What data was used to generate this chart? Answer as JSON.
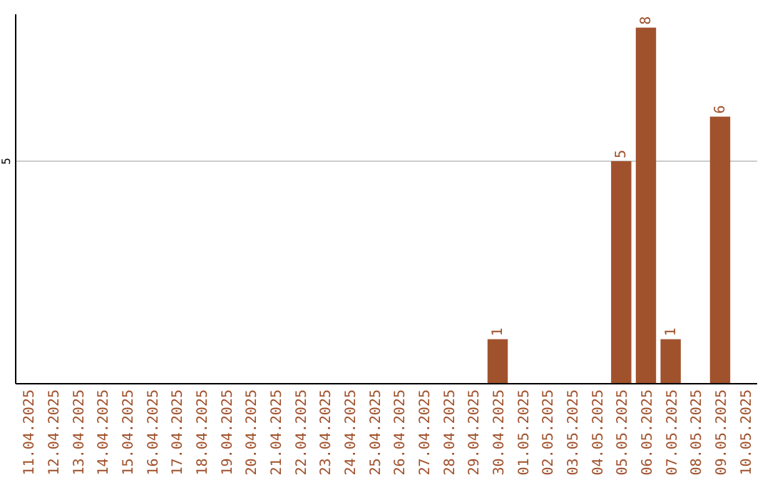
{
  "chart_data": {
    "type": "bar",
    "categories": [
      "11.04.2025",
      "12.04.2025",
      "13.04.2025",
      "14.04.2025",
      "15.04.2025",
      "16.04.2025",
      "17.04.2025",
      "18.04.2025",
      "19.04.2025",
      "20.04.2025",
      "21.04.2025",
      "22.04.2025",
      "23.04.2025",
      "24.04.2025",
      "25.04.2025",
      "26.04.2025",
      "27.04.2025",
      "28.04.2025",
      "29.04.2025",
      "30.04.2025",
      "01.05.2025",
      "02.05.2025",
      "03.05.2025",
      "04.05.2025",
      "05.05.2025",
      "06.05.2025",
      "07.05.2025",
      "08.05.2025",
      "09.05.2025",
      "10.05.2025"
    ],
    "values": [
      null,
      null,
      null,
      null,
      null,
      null,
      null,
      null,
      null,
      null,
      null,
      null,
      null,
      null,
      null,
      null,
      null,
      null,
      null,
      1,
      null,
      null,
      null,
      null,
      5,
      8,
      1,
      null,
      6,
      null
    ],
    "value_labels": [
      null,
      null,
      null,
      null,
      null,
      null,
      null,
      null,
      null,
      null,
      null,
      null,
      null,
      null,
      null,
      null,
      null,
      null,
      null,
      "1",
      null,
      null,
      null,
      null,
      "5",
      "8",
      "1",
      null,
      "6",
      null
    ],
    "color": "#a0522d",
    "ylim": [
      0,
      8.3
    ],
    "ref_lines": [
      {
        "axis": "y",
        "value": 5,
        "label": "5",
        "color": "#cccccc"
      }
    ]
  }
}
